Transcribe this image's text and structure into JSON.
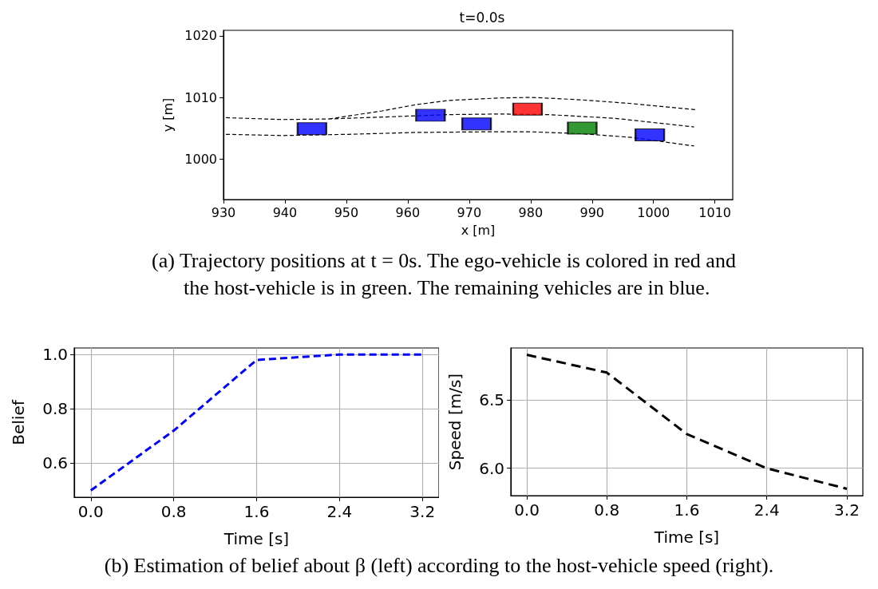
{
  "chart_data": [
    {
      "type": "scatter",
      "title": "t=0.0s",
      "xlabel": "x [m]",
      "ylabel": "y [m]",
      "xlim": [
        930,
        1012.9
      ],
      "ylim": [
        993.4,
        1020.9
      ],
      "xticks": [
        930,
        940,
        950,
        960,
        970,
        980,
        990,
        1000,
        1010
      ],
      "yticks": [
        1000,
        1010,
        1020
      ],
      "series": [
        {
          "type": "line",
          "color": "#000000",
          "line_style": "dashed",
          "marker": "none",
          "x": [
            947.2,
            955.8,
            961.2,
            966.6,
            974.8,
            980.2,
            988.3,
            996.4,
            1006.9
          ],
          "values": [
            1006.5,
            1007.8,
            1008.8,
            1009.5,
            1009.9,
            1010.0,
            1009.6,
            1009.0,
            1008.0
          ]
        },
        {
          "type": "line",
          "color": "#000000",
          "line_style": "dashed",
          "marker": "none",
          "x": [
            930.4,
            939.6,
            947.2,
            955.8,
            966.6,
            974.8,
            983,
            993.7,
            1006.6
          ],
          "values": [
            1006.7,
            1006.4,
            1006.5,
            1006.8,
            1007.2,
            1007.3,
            1007.2,
            1006.6,
            1005.2
          ]
        },
        {
          "type": "line",
          "color": "#000000",
          "line_style": "dashed",
          "marker": "none",
          "x": [
            930.4,
            939.6,
            950.4,
            961.2,
            972.1,
            980.2,
            988.3,
            996.4,
            1006.6
          ],
          "values": [
            1004.0,
            1003.8,
            1004.0,
            1004.3,
            1004.4,
            1004.4,
            1004.1,
            1003.5,
            1002.1
          ]
        },
        {
          "marker": "square",
          "x": [
            944.4,
            963.7,
            971.2,
            979.5,
            988.4,
            999.4
          ],
          "values": [
            1004.9,
            1007.1,
            1005.7,
            1008.1,
            1005.0,
            1003.9
          ],
          "colors": [
            "#0000ff",
            "#0000ff",
            "#0000ff",
            "#ff0000",
            "#008000",
            "#0000ff"
          ]
        }
      ],
      "annotations": [
        "(a) Trajectory positions at t = 0s. The ego-vehicle is colored in red and the host-vehicle is in green. The remaining vehicles are in blue."
      ]
    },
    {
      "type": "line",
      "xlabel": "Time [s]",
      "ylabel": "Belief",
      "grid": true,
      "marker": "none",
      "line_style": "dashed",
      "xlim": [
        -0.16,
        3.36
      ],
      "ylim": [
        0.475,
        1.024
      ],
      "xticks": [
        {
          "value": 0,
          "label": "0.0"
        },
        0.8,
        1.6,
        2.4,
        3.2
      ],
      "yticks": [
        0.6,
        0.8,
        {
          "value": 1,
          "label": "1.0"
        }
      ],
      "x": [
        0,
        0.8,
        1.6,
        2.4,
        3.2
      ],
      "series": [
        {
          "color": "#0000ff",
          "values": [
            0.5,
            0.72,
            0.98,
            1.0,
            1.0
          ]
        }
      ]
    },
    {
      "type": "line",
      "xlabel": "Time [s]",
      "ylabel": "Speed [m/s]",
      "grid": true,
      "marker": "none",
      "line_style": "dashed",
      "xlim": [
        -0.16,
        3.36
      ],
      "ylim": [
        5.8,
        6.88
      ],
      "xticks": [
        {
          "value": 0,
          "label": "0.0"
        },
        0.8,
        1.6,
        2.4,
        3.2
      ],
      "yticks": [
        {
          "value": 6,
          "label": "6.0"
        },
        6.5
      ],
      "x": [
        0,
        0.8,
        1.6,
        2.4,
        3.2
      ],
      "series": [
        {
          "color": "#000000",
          "values": [
            6.83,
            6.7,
            6.25,
            6.0,
            5.85
          ]
        }
      ],
      "annotations": [
        "(b) Estimation of belief about β (left) according to the host-vehicle speed (right)."
      ]
    }
  ]
}
